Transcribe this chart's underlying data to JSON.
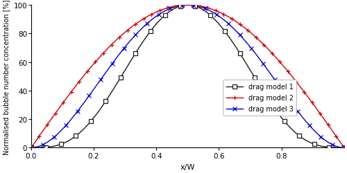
{
  "title": "",
  "xlabel": "x/W",
  "ylabel": "Normalised bubble number concentration [%]",
  "xlim": [
    0,
    1.0
  ],
  "ylim": [
    0,
    100
  ],
  "xticks": [
    0.0,
    0.2,
    0.4,
    0.6,
    0.8
  ],
  "yticks": [
    0,
    20,
    40,
    60,
    80,
    100
  ],
  "background_color": "#ffffff",
  "legend": {
    "entries": [
      "drag model 1",
      "drag model 2",
      "drag model 3"
    ]
  },
  "series": {
    "model1": {
      "color": "#1a1a1a",
      "marker": "s",
      "marker_size": 4,
      "linewidth": 1.0,
      "power": 3.5
    },
    "model2": {
      "color": "#cc0000",
      "marker": "+",
      "marker_size": 5,
      "linewidth": 1.0,
      "power": 1.0
    },
    "model3": {
      "color": "#0000cc",
      "marker": "x",
      "marker_size": 4,
      "linewidth": 1.0,
      "power": 2.0
    }
  }
}
